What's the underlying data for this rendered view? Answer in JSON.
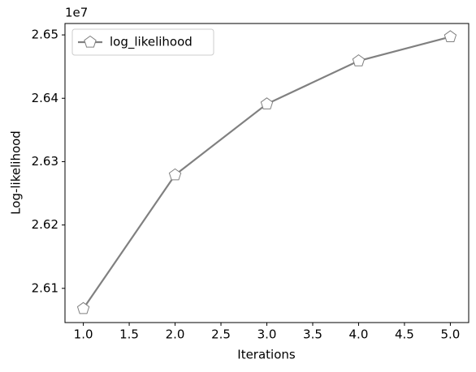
{
  "chart_data": {
    "type": "line",
    "x_label": "Iterations",
    "y_label": "Log-likelihood",
    "y_offset_label": "1e7",
    "x": [
      1,
      2,
      3,
      4,
      5
    ],
    "series": [
      {
        "name": "log_likelihood",
        "color": "#808080",
        "marker_fill": "#ffffff",
        "marker": "pentagon",
        "values": [
          2.6068,
          2.6279,
          2.6391,
          2.6459,
          2.6497
        ]
      }
    ],
    "xlim": [
      0.8,
      5.2
    ],
    "xticks": [
      {
        "value": 1,
        "label": "1.0"
      },
      {
        "value": 1.5,
        "label": "1.5"
      },
      {
        "value": 2,
        "label": "2.0"
      },
      {
        "value": 2.5,
        "label": "2.5"
      },
      {
        "value": 3,
        "label": "3.0"
      },
      {
        "value": 3.5,
        "label": "3.5"
      },
      {
        "value": 4,
        "label": "4.0"
      },
      {
        "value": 4.5,
        "label": "4.5"
      },
      {
        "value": 5,
        "label": "5.0"
      }
    ],
    "ylim": [
      2.6046,
      2.6518
    ],
    "yticks": [
      2.61,
      2.62,
      2.63,
      2.64,
      2.65
    ],
    "grid": false,
    "legend": "upper left"
  }
}
